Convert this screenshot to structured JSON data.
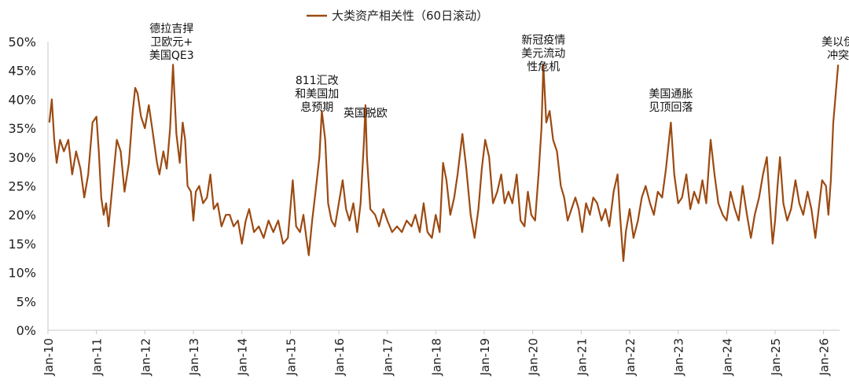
{
  "chart_data": {
    "type": "line",
    "legend": {
      "label": "大类资产相关性（60日滚动）",
      "position": "top-center"
    },
    "series": [
      {
        "name": "大类资产相关性（60日滚动）",
        "color": "#9C4A12",
        "points": [
          [
            2010.03,
            0.36
          ],
          [
            2010.08,
            0.4
          ],
          [
            2010.13,
            0.33
          ],
          [
            2010.18,
            0.29
          ],
          [
            2010.25,
            0.33
          ],
          [
            2010.33,
            0.31
          ],
          [
            2010.42,
            0.33
          ],
          [
            2010.5,
            0.27
          ],
          [
            2010.58,
            0.31
          ],
          [
            2010.67,
            0.28
          ],
          [
            2010.75,
            0.23
          ],
          [
            2010.83,
            0.27
          ],
          [
            2010.92,
            0.36
          ],
          [
            2011.0,
            0.37
          ],
          [
            2011.05,
            0.31
          ],
          [
            2011.1,
            0.23
          ],
          [
            2011.15,
            0.2
          ],
          [
            2011.2,
            0.22
          ],
          [
            2011.25,
            0.18
          ],
          [
            2011.33,
            0.25
          ],
          [
            2011.42,
            0.33
          ],
          [
            2011.5,
            0.31
          ],
          [
            2011.58,
            0.24
          ],
          [
            2011.67,
            0.29
          ],
          [
            2011.75,
            0.38
          ],
          [
            2011.8,
            0.42
          ],
          [
            2011.85,
            0.41
          ],
          [
            2011.92,
            0.37
          ],
          [
            2012.0,
            0.35
          ],
          [
            2012.08,
            0.39
          ],
          [
            2012.15,
            0.35
          ],
          [
            2012.25,
            0.29
          ],
          [
            2012.3,
            0.27
          ],
          [
            2012.38,
            0.31
          ],
          [
            2012.45,
            0.28
          ],
          [
            2012.52,
            0.35
          ],
          [
            2012.58,
            0.46
          ],
          [
            2012.65,
            0.34
          ],
          [
            2012.72,
            0.29
          ],
          [
            2012.78,
            0.36
          ],
          [
            2012.83,
            0.33
          ],
          [
            2012.88,
            0.25
          ],
          [
            2012.95,
            0.24
          ],
          [
            2013.0,
            0.19
          ],
          [
            2013.05,
            0.24
          ],
          [
            2013.12,
            0.25
          ],
          [
            2013.2,
            0.22
          ],
          [
            2013.28,
            0.23
          ],
          [
            2013.35,
            0.27
          ],
          [
            2013.42,
            0.21
          ],
          [
            2013.5,
            0.22
          ],
          [
            2013.58,
            0.18
          ],
          [
            2013.67,
            0.2
          ],
          [
            2013.75,
            0.2
          ],
          [
            2013.83,
            0.18
          ],
          [
            2013.92,
            0.19
          ],
          [
            2014.0,
            0.15
          ],
          [
            2014.08,
            0.19
          ],
          [
            2014.15,
            0.21
          ],
          [
            2014.25,
            0.17
          ],
          [
            2014.35,
            0.18
          ],
          [
            2014.45,
            0.16
          ],
          [
            2014.55,
            0.19
          ],
          [
            2014.65,
            0.17
          ],
          [
            2014.75,
            0.19
          ],
          [
            2014.85,
            0.15
          ],
          [
            2014.95,
            0.16
          ],
          [
            2015.0,
            0.21
          ],
          [
            2015.05,
            0.26
          ],
          [
            2015.12,
            0.18
          ],
          [
            2015.2,
            0.17
          ],
          [
            2015.27,
            0.2
          ],
          [
            2015.33,
            0.16
          ],
          [
            2015.38,
            0.13
          ],
          [
            2015.45,
            0.19
          ],
          [
            2015.52,
            0.24
          ],
          [
            2015.6,
            0.3
          ],
          [
            2015.65,
            0.38
          ],
          [
            2015.72,
            0.33
          ],
          [
            2015.78,
            0.22
          ],
          [
            2015.85,
            0.19
          ],
          [
            2015.92,
            0.18
          ],
          [
            2016.0,
            0.22
          ],
          [
            2016.08,
            0.26
          ],
          [
            2016.15,
            0.21
          ],
          [
            2016.22,
            0.19
          ],
          [
            2016.3,
            0.22
          ],
          [
            2016.38,
            0.17
          ],
          [
            2016.45,
            0.22
          ],
          [
            2016.52,
            0.33
          ],
          [
            2016.55,
            0.39
          ],
          [
            2016.58,
            0.3
          ],
          [
            2016.65,
            0.21
          ],
          [
            2016.75,
            0.2
          ],
          [
            2016.83,
            0.18
          ],
          [
            2016.92,
            0.21
          ],
          [
            2017.0,
            0.19
          ],
          [
            2017.1,
            0.17
          ],
          [
            2017.2,
            0.18
          ],
          [
            2017.3,
            0.17
          ],
          [
            2017.4,
            0.19
          ],
          [
            2017.5,
            0.18
          ],
          [
            2017.58,
            0.2
          ],
          [
            2017.67,
            0.17
          ],
          [
            2017.75,
            0.22
          ],
          [
            2017.83,
            0.17
          ],
          [
            2017.92,
            0.16
          ],
          [
            2018.0,
            0.2
          ],
          [
            2018.08,
            0.17
          ],
          [
            2018.15,
            0.29
          ],
          [
            2018.22,
            0.26
          ],
          [
            2018.3,
            0.2
          ],
          [
            2018.38,
            0.23
          ],
          [
            2018.45,
            0.27
          ],
          [
            2018.55,
            0.34
          ],
          [
            2018.63,
            0.28
          ],
          [
            2018.72,
            0.2
          ],
          [
            2018.8,
            0.16
          ],
          [
            2018.88,
            0.21
          ],
          [
            2018.95,
            0.28
          ],
          [
            2019.02,
            0.33
          ],
          [
            2019.1,
            0.3
          ],
          [
            2019.18,
            0.22
          ],
          [
            2019.27,
            0.24
          ],
          [
            2019.35,
            0.27
          ],
          [
            2019.42,
            0.22
          ],
          [
            2019.5,
            0.24
          ],
          [
            2019.58,
            0.22
          ],
          [
            2019.67,
            0.27
          ],
          [
            2019.75,
            0.19
          ],
          [
            2019.83,
            0.18
          ],
          [
            2019.9,
            0.24
          ],
          [
            2019.97,
            0.2
          ],
          [
            2020.05,
            0.19
          ],
          [
            2020.12,
            0.27
          ],
          [
            2020.18,
            0.35
          ],
          [
            2020.22,
            0.46
          ],
          [
            2020.28,
            0.36
          ],
          [
            2020.35,
            0.38
          ],
          [
            2020.42,
            0.33
          ],
          [
            2020.5,
            0.31
          ],
          [
            2020.58,
            0.25
          ],
          [
            2020.65,
            0.23
          ],
          [
            2020.72,
            0.19
          ],
          [
            2020.8,
            0.21
          ],
          [
            2020.88,
            0.23
          ],
          [
            2020.95,
            0.21
          ],
          [
            2021.02,
            0.17
          ],
          [
            2021.1,
            0.22
          ],
          [
            2021.18,
            0.2
          ],
          [
            2021.25,
            0.23
          ],
          [
            2021.33,
            0.22
          ],
          [
            2021.42,
            0.19
          ],
          [
            2021.5,
            0.21
          ],
          [
            2021.58,
            0.18
          ],
          [
            2021.67,
            0.24
          ],
          [
            2021.75,
            0.27
          ],
          [
            2021.8,
            0.2
          ],
          [
            2021.87,
            0.12
          ],
          [
            2021.92,
            0.17
          ],
          [
            2022.0,
            0.21
          ],
          [
            2022.08,
            0.16
          ],
          [
            2022.17,
            0.19
          ],
          [
            2022.25,
            0.23
          ],
          [
            2022.33,
            0.25
          ],
          [
            2022.42,
            0.22
          ],
          [
            2022.5,
            0.2
          ],
          [
            2022.58,
            0.24
          ],
          [
            2022.67,
            0.23
          ],
          [
            2022.75,
            0.28
          ],
          [
            2022.85,
            0.36
          ],
          [
            2022.92,
            0.27
          ],
          [
            2023.0,
            0.22
          ],
          [
            2023.08,
            0.23
          ],
          [
            2023.17,
            0.27
          ],
          [
            2023.25,
            0.21
          ],
          [
            2023.33,
            0.24
          ],
          [
            2023.42,
            0.22
          ],
          [
            2023.5,
            0.26
          ],
          [
            2023.58,
            0.22
          ],
          [
            2023.67,
            0.33
          ],
          [
            2023.75,
            0.27
          ],
          [
            2023.83,
            0.22
          ],
          [
            2023.92,
            0.2
          ],
          [
            2024.0,
            0.19
          ],
          [
            2024.08,
            0.24
          ],
          [
            2024.17,
            0.21
          ],
          [
            2024.25,
            0.19
          ],
          [
            2024.33,
            0.25
          ],
          [
            2024.42,
            0.2
          ],
          [
            2024.5,
            0.16
          ],
          [
            2024.58,
            0.2
          ],
          [
            2024.67,
            0.23
          ],
          [
            2024.75,
            0.27
          ],
          [
            2024.83,
            0.3
          ],
          [
            2024.9,
            0.21
          ],
          [
            2024.95,
            0.15
          ],
          [
            2025.0,
            0.19
          ],
          [
            2025.05,
            0.25
          ],
          [
            2025.1,
            0.3
          ],
          [
            2025.17,
            0.22
          ],
          [
            2025.25,
            0.19
          ],
          [
            2025.33,
            0.21
          ],
          [
            2025.42,
            0.26
          ],
          [
            2025.5,
            0.22
          ],
          [
            2025.58,
            0.2
          ],
          [
            2025.67,
            0.24
          ],
          [
            2025.75,
            0.21
          ],
          [
            2025.83,
            0.16
          ],
          [
            2025.9,
            0.21
          ],
          [
            2025.97,
            0.26
          ],
          [
            2026.05,
            0.25
          ],
          [
            2026.1,
            0.2
          ],
          [
            2026.15,
            0.26
          ],
          [
            2026.2,
            0.36
          ],
          [
            2026.25,
            0.41
          ],
          [
            2026.3,
            0.46
          ]
        ]
      }
    ],
    "annotations": [
      {
        "lines": [
          "德拉吉捍",
          "卫欧元+",
          "美国QE3"
        ],
        "x": 2012.55,
        "y": 0.47
      },
      {
        "lines": [
          "811汇改",
          "和美国加",
          "息预期"
        ],
        "x": 2015.55,
        "y": 0.38
      },
      {
        "lines": [
          "英国脱欧"
        ],
        "x": 2016.55,
        "y": 0.37
      },
      {
        "lines": [
          "新冠疫情",
          "美元流动",
          "性危机"
        ],
        "x": 2020.22,
        "y": 0.45
      },
      {
        "lines": [
          "美国通胀",
          "见顶回落"
        ],
        "x": 2022.85,
        "y": 0.38
      },
      {
        "lines": [
          "美以伊",
          "冲突"
        ],
        "x": 2026.3,
        "y": 0.47
      }
    ],
    "x_axis": {
      "tick_labels": [
        "Jan-10",
        "Jan-11",
        "Jan-12",
        "Jan-13",
        "Jan-14",
        "Jan-15",
        "Jan-16",
        "Jan-17",
        "Jan-18",
        "Jan-19",
        "Jan-20",
        "Jan-21",
        "Jan-22",
        "Jan-23",
        "Jan-24",
        "Jan-25",
        "Jan-26"
      ],
      "tick_values": [
        2010,
        2011,
        2012,
        2013,
        2014,
        2015,
        2016,
        2017,
        2018,
        2019,
        2020,
        2021,
        2022,
        2023,
        2024,
        2025,
        2026
      ],
      "range": [
        2010,
        2026.33
      ]
    },
    "y_axis": {
      "tick_labels": [
        "0%",
        "5%",
        "10%",
        "15%",
        "20%",
        "25%",
        "30%",
        "35%",
        "40%",
        "45%",
        "50%"
      ],
      "tick_values": [
        0,
        0.05,
        0.1,
        0.15,
        0.2,
        0.25,
        0.3,
        0.35,
        0.4,
        0.45,
        0.5
      ],
      "range": [
        0,
        0.5
      ]
    },
    "grid": false
  }
}
